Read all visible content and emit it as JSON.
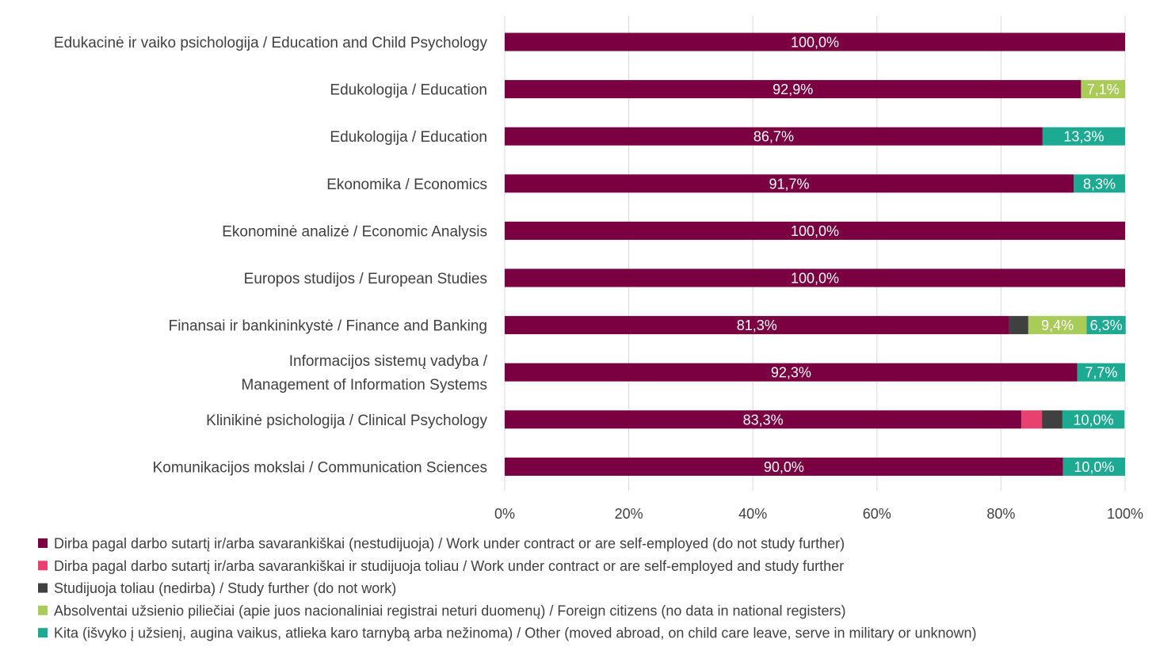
{
  "chart_data": {
    "type": "bar",
    "orientation": "horizontal",
    "stacked": true,
    "xlim": [
      0,
      100
    ],
    "x_ticks": [
      "0%",
      "20%",
      "40%",
      "60%",
      "80%",
      "100%"
    ],
    "grid": true,
    "legend_position": "bottom",
    "categories": [
      [
        "Edukacinė ir vaiko psichologija / Education and Child Psychology"
      ],
      [
        "Edukologija / Education"
      ],
      [
        "Edukologija / Education"
      ],
      [
        "Ekonomika / Economics"
      ],
      [
        "Ekonominė analizė / Economic Analysis"
      ],
      [
        "Europos studijos / European Studies"
      ],
      [
        "Finansai ir bankininkystė / Finance and Banking "
      ],
      [
        "Informacijos sistemų vadyba /",
        "Management of Information Systems"
      ],
      [
        "Klinikinė psichologija / Clinical Psychology"
      ],
      [
        "Komunikacijos mokslai / Communication Sciences"
      ]
    ],
    "series": [
      {
        "name": "Dirba pagal darbo sutartį ir/arba savarankiškai (nestudijuoja) / Work under contract or are self-employed (do not study further)",
        "color": "#7B0041",
        "values": [
          100.0,
          92.9,
          86.7,
          91.7,
          100.0,
          100.0,
          81.3,
          92.3,
          83.3,
          90.0
        ],
        "labels": [
          "100,0%",
          "92,9%",
          "86,7%",
          "91,7%",
          "100,0%",
          "100,0%",
          "81,3%",
          "92,3%",
          "83,3%",
          "90,0%"
        ]
      },
      {
        "name": "Dirba pagal darbo sutartį ir/arba savarankiškai  ir studijuoja toliau / Work under contract or are self-employed and study further",
        "color": "#E8416F",
        "values": [
          0,
          0,
          0,
          0,
          0,
          0,
          0,
          0,
          3.3,
          0
        ],
        "labels": [
          "",
          "",
          "",
          "",
          "",
          "",
          "",
          "",
          "",
          ""
        ]
      },
      {
        "name": "Studijuoja toliau (nedirba) / Study further (do not work)",
        "color": "#404040",
        "values": [
          0,
          0,
          0,
          0,
          0,
          0,
          3.1,
          0,
          3.3,
          0
        ],
        "labels": [
          "",
          "",
          "",
          "",
          "",
          "",
          "",
          "",
          "",
          ""
        ]
      },
      {
        "name": "Absolventai užsienio piliečiai (apie juos nacionaliniai registrai neturi duomenų) / Foreign citizens (no data in national registers)",
        "color": "#A9CC59",
        "values": [
          0,
          7.1,
          0,
          0,
          0,
          0,
          9.4,
          0,
          0,
          0
        ],
        "labels": [
          "",
          "7,1%",
          "",
          "",
          "",
          "",
          "9,4%",
          "",
          "",
          ""
        ]
      },
      {
        "name": "Kita (išvyko į užsienį, augina vaikus, atlieka karo tarnybą arba nežinoma) / Other (moved abroad, on child care leave, serve in military or unknown)",
        "color": "#1CAA92",
        "values": [
          0,
          0,
          13.3,
          8.3,
          0,
          0,
          6.3,
          7.7,
          10.0,
          10.0
        ],
        "labels": [
          "",
          "",
          "13,3%",
          "8,3%",
          "",
          "",
          "6,3%",
          "7,7%",
          "10,0%",
          "10,0%"
        ]
      }
    ]
  }
}
